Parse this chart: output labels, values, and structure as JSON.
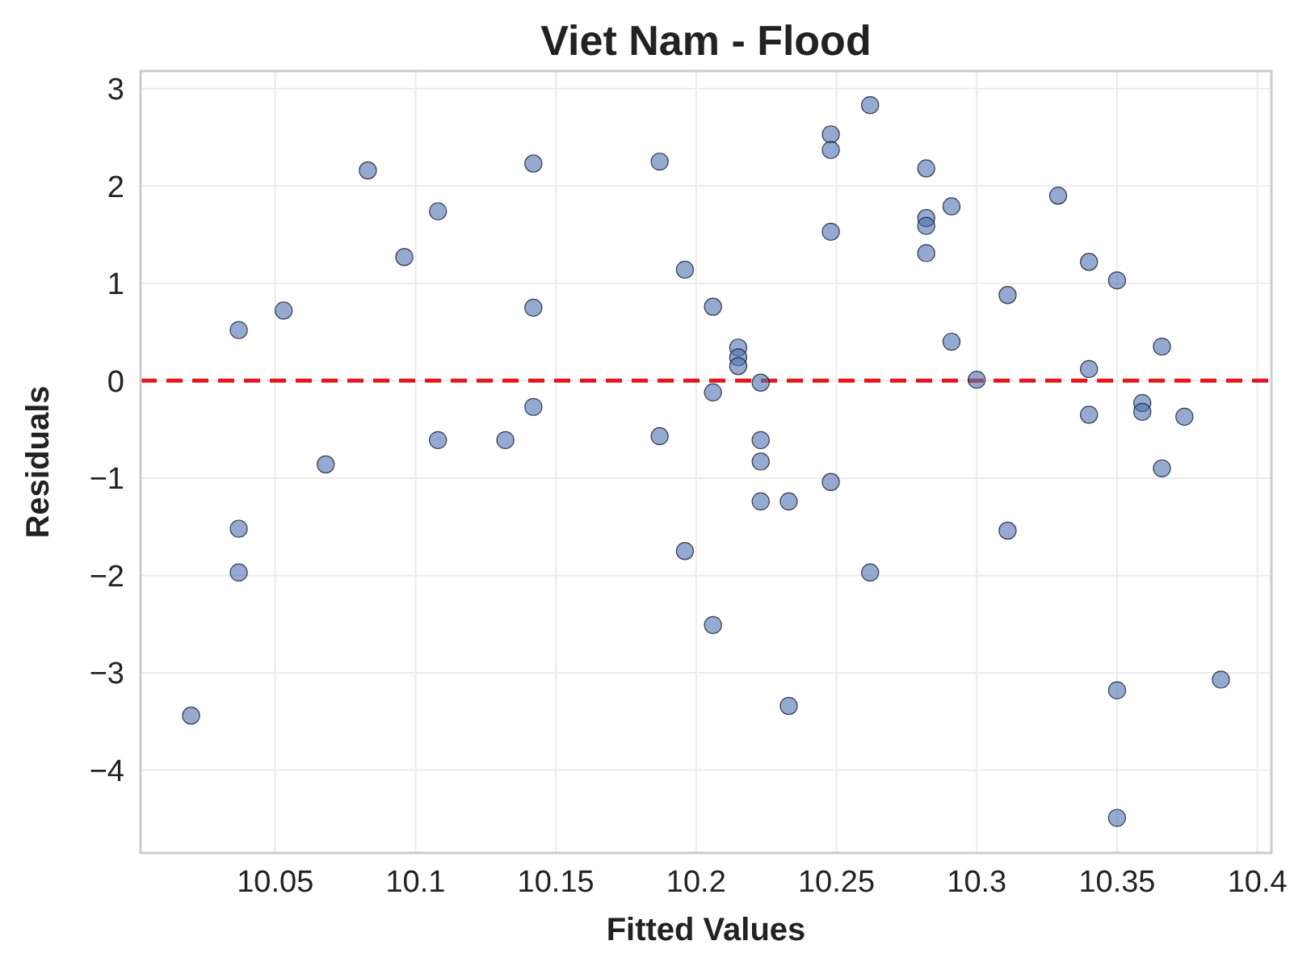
{
  "chart_data": {
    "type": "scatter",
    "title": "Viet Nam - Flood",
    "xlabel": "Fitted Values",
    "ylabel": "Residuals",
    "xlim": [
      10.002,
      10.405
    ],
    "ylim": [
      -4.85,
      3.18
    ],
    "xticks": [
      10.05,
      10.1,
      10.15,
      10.2,
      10.25,
      10.3,
      10.35,
      10.4
    ],
    "yticks": [
      -4,
      -3,
      -2,
      -1,
      0,
      1,
      2,
      3
    ],
    "grid": true,
    "marker": "circle",
    "series": [
      {
        "color": "#4c72b0",
        "x": [
          10.02,
          10.037,
          10.037,
          10.037,
          10.053,
          10.068,
          10.083,
          10.096,
          10.108,
          10.108,
          10.132,
          10.142,
          10.142,
          10.142,
          10.187,
          10.187,
          10.196,
          10.196,
          10.206,
          10.206,
          10.206,
          10.215,
          10.215,
          10.215,
          10.223,
          10.223,
          10.223,
          10.223,
          10.233,
          10.233,
          10.248,
          10.248,
          10.248,
          10.248,
          10.262,
          10.262,
          10.282,
          10.282,
          10.282,
          10.282,
          10.291,
          10.291,
          10.3,
          10.311,
          10.311,
          10.329,
          10.34,
          10.34,
          10.34,
          10.35,
          10.35,
          10.35,
          10.359,
          10.359,
          10.366,
          10.366,
          10.374,
          10.387
        ],
        "values": [
          -3.44,
          0.52,
          -1.52,
          -1.97,
          0.72,
          -0.86,
          2.16,
          1.27,
          1.74,
          -0.61,
          -0.61,
          2.23,
          0.75,
          -0.27,
          2.25,
          -0.57,
          1.14,
          -1.75,
          0.76,
          -0.12,
          -2.51,
          0.34,
          0.24,
          0.15,
          -0.02,
          -0.61,
          -0.83,
          -1.24,
          -1.24,
          -3.34,
          2.53,
          2.37,
          1.53,
          -1.04,
          2.83,
          -1.97,
          2.18,
          1.67,
          1.59,
          1.31,
          1.79,
          0.4,
          0.01,
          0.88,
          -1.54,
          1.9,
          1.22,
          0.12,
          -0.35,
          1.03,
          -3.18,
          -4.49,
          -0.23,
          -0.32,
          0.35,
          -0.9,
          -0.37,
          -3.07
        ]
      }
    ],
    "ref_lines": [
      {
        "axis": "y",
        "value": 0,
        "color": "#e8141c",
        "line_style": "dashed"
      }
    ]
  }
}
